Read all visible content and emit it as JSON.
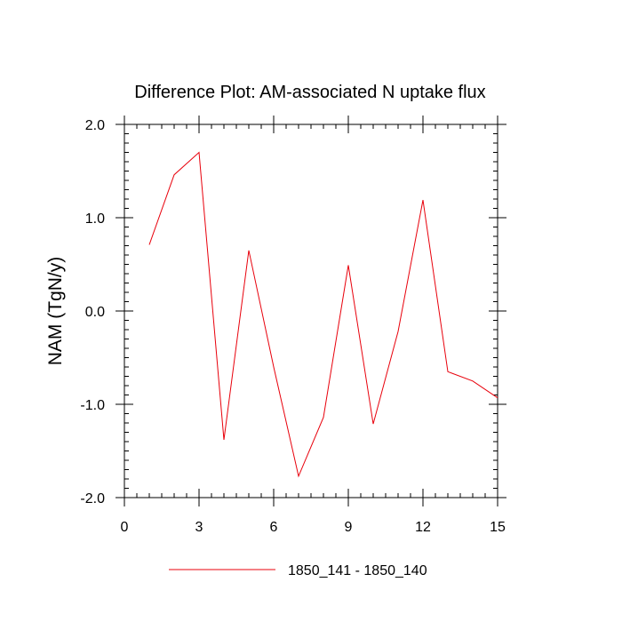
{
  "chart_data": {
    "type": "line",
    "title": "Difference Plot: AM-associated N uptake flux",
    "xlabel": "",
    "ylabel": "NAM  (TgN/y)",
    "xlim": [
      0,
      15
    ],
    "ylim": [
      -2.0,
      2.0
    ],
    "x_ticks": [
      0,
      3,
      6,
      9,
      12,
      15
    ],
    "x_tick_labels": [
      "0",
      "3",
      "6",
      "9",
      "12",
      "15"
    ],
    "y_ticks": [
      -2.0,
      -1.0,
      0.0,
      1.0,
      2.0
    ],
    "y_tick_labels": [
      "-2.0",
      "-1.0",
      "0.0",
      "1.0",
      "2.0"
    ],
    "grid": false,
    "legend_position": "bottom-center",
    "series": [
      {
        "name": "1850_141 - 1850_140",
        "color": "#e8000b",
        "x": [
          1,
          2,
          3,
          4,
          5,
          6,
          7,
          8,
          9,
          10,
          11,
          12,
          13,
          14,
          15
        ],
        "y": [
          0.71,
          1.46,
          1.7,
          -1.38,
          0.65,
          -0.6,
          -1.77,
          -1.14,
          0.49,
          -1.21,
          -0.22,
          1.19,
          -0.65,
          -0.75,
          -0.93
        ]
      }
    ]
  }
}
